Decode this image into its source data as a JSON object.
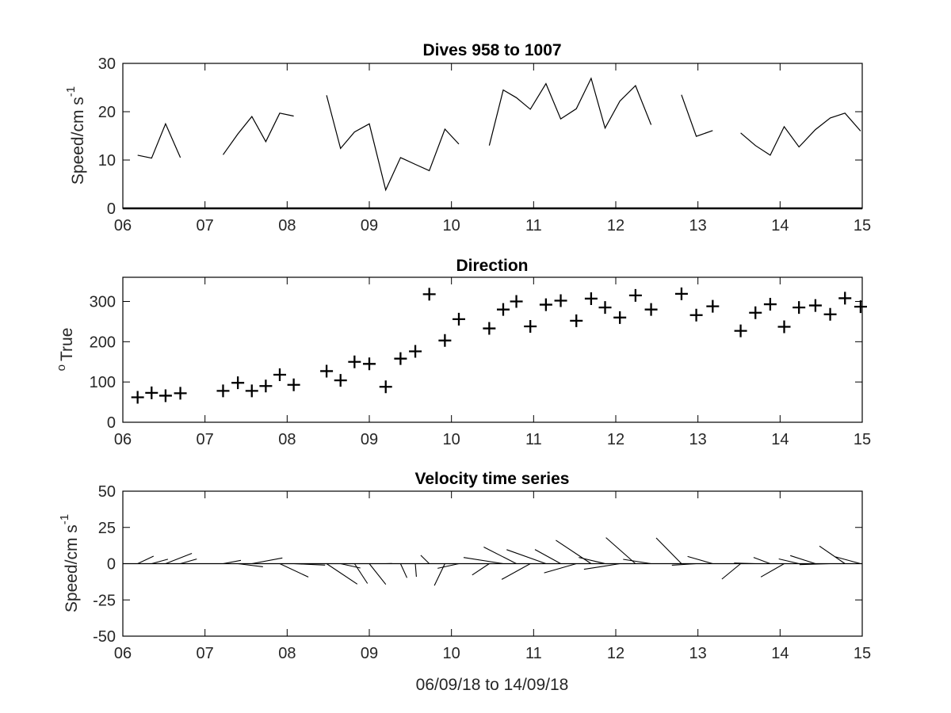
{
  "chart_data": [
    {
      "type": "line",
      "title": "Dives 958 to 1007",
      "ylabel": "Speed/cm s",
      "ylabel_sup": "-1",
      "xlabel": "",
      "xlim": [
        6,
        15
      ],
      "ylim": [
        0,
        30
      ],
      "xticks": [
        "06",
        "07",
        "08",
        "09",
        "10",
        "11",
        "12",
        "13",
        "14",
        "15"
      ],
      "yticks": [
        "0",
        "10",
        "20",
        "30"
      ],
      "ytick_values": [
        0,
        10,
        20,
        30
      ],
      "grid": false,
      "zero_line": true,
      "segments": [
        [
          [
            6.18,
            11.0
          ],
          [
            6.35,
            10.4
          ],
          [
            6.52,
            17.5
          ],
          [
            6.7,
            10.5
          ]
        ],
        [
          [
            7.22,
            11.1
          ],
          [
            7.4,
            15.4
          ],
          [
            7.57,
            19.0
          ],
          [
            7.74,
            13.8
          ],
          [
            7.91,
            19.7
          ],
          [
            8.08,
            19.1
          ]
        ],
        [
          [
            8.48,
            23.4
          ],
          [
            8.65,
            12.4
          ],
          [
            8.82,
            15.8
          ],
          [
            9.0,
            17.5
          ],
          [
            9.2,
            3.8
          ],
          [
            9.38,
            10.5
          ],
          [
            9.56,
            9.1
          ],
          [
            9.73,
            7.8
          ],
          [
            9.92,
            16.4
          ],
          [
            10.09,
            13.3
          ]
        ],
        [
          [
            10.46,
            13.0
          ],
          [
            10.63,
            24.5
          ],
          [
            10.79,
            22.9
          ],
          [
            10.96,
            20.5
          ],
          [
            11.15,
            25.8
          ],
          [
            11.33,
            18.5
          ],
          [
            11.52,
            20.6
          ],
          [
            11.7,
            26.9
          ],
          [
            11.87,
            16.6
          ],
          [
            12.05,
            22.2
          ],
          [
            12.24,
            25.4
          ],
          [
            12.43,
            17.3
          ]
        ],
        [
          [
            12.8,
            23.5
          ],
          [
            12.98,
            14.9
          ],
          [
            13.18,
            16.1
          ]
        ],
        [
          [
            13.52,
            15.6
          ],
          [
            13.7,
            13.0
          ],
          [
            13.88,
            11.0
          ],
          [
            14.05,
            16.9
          ],
          [
            14.23,
            12.7
          ],
          [
            14.43,
            16.3
          ],
          [
            14.61,
            18.7
          ],
          [
            14.79,
            19.7
          ],
          [
            14.98,
            16.0
          ]
        ]
      ]
    },
    {
      "type": "scatter",
      "title": "Direction",
      "ylabel": "True",
      "ylabel_sup": "o",
      "xlabel": "",
      "xlim": [
        6,
        15
      ],
      "ylim": [
        0,
        360
      ],
      "xticks": [
        "06",
        "07",
        "08",
        "09",
        "10",
        "11",
        "12",
        "13",
        "14",
        "15"
      ],
      "yticks": [
        "0",
        "100",
        "200",
        "300"
      ],
      "ytick_values": [
        0,
        100,
        200,
        300
      ],
      "grid": false,
      "marker": "+",
      "points": [
        [
          6.18,
          62
        ],
        [
          6.35,
          73
        ],
        [
          6.52,
          66
        ],
        [
          6.7,
          72
        ],
        [
          7.22,
          78
        ],
        [
          7.4,
          98
        ],
        [
          7.57,
          78
        ],
        [
          7.74,
          90
        ],
        [
          7.91,
          118
        ],
        [
          8.08,
          93
        ],
        [
          8.48,
          127
        ],
        [
          8.65,
          104
        ],
        [
          8.82,
          150
        ],
        [
          9.0,
          145
        ],
        [
          9.2,
          88
        ],
        [
          9.38,
          158
        ],
        [
          9.56,
          176
        ],
        [
          9.73,
          318
        ],
        [
          9.92,
          203
        ],
        [
          10.09,
          256
        ],
        [
          10.46,
          233
        ],
        [
          10.63,
          280
        ],
        [
          10.79,
          300
        ],
        [
          10.96,
          238
        ],
        [
          11.15,
          292
        ],
        [
          11.33,
          302
        ],
        [
          11.52,
          252
        ],
        [
          11.7,
          307
        ],
        [
          11.87,
          285
        ],
        [
          12.05,
          260
        ],
        [
          12.24,
          315
        ],
        [
          12.43,
          280
        ],
        [
          12.8,
          319
        ],
        [
          12.98,
          266
        ],
        [
          13.18,
          288
        ],
        [
          13.52,
          227
        ],
        [
          13.7,
          272
        ],
        [
          13.88,
          293
        ],
        [
          14.05,
          237
        ],
        [
          14.23,
          285
        ],
        [
          14.43,
          290
        ],
        [
          14.61,
          268
        ],
        [
          14.79,
          308
        ],
        [
          14.98,
          287
        ]
      ]
    },
    {
      "type": "quiver",
      "title": "Velocity time series",
      "ylabel": "Speed/cm s",
      "ylabel_sup": "-1",
      "xlabel": "06/09/18 to 14/09/18",
      "xlim": [
        6,
        15
      ],
      "ylim": [
        -50,
        50
      ],
      "xticks": [
        "06",
        "07",
        "08",
        "09",
        "10",
        "11",
        "12",
        "13",
        "14",
        "15"
      ],
      "yticks": [
        "50",
        "25",
        "0",
        "-25",
        "-50"
      ],
      "ytick_values": [
        50,
        25,
        0,
        -25,
        -50
      ],
      "grid": false,
      "baseline": 0,
      "note": "vectors drawn from (time, 0) using speed and direction from the panels above"
    }
  ]
}
